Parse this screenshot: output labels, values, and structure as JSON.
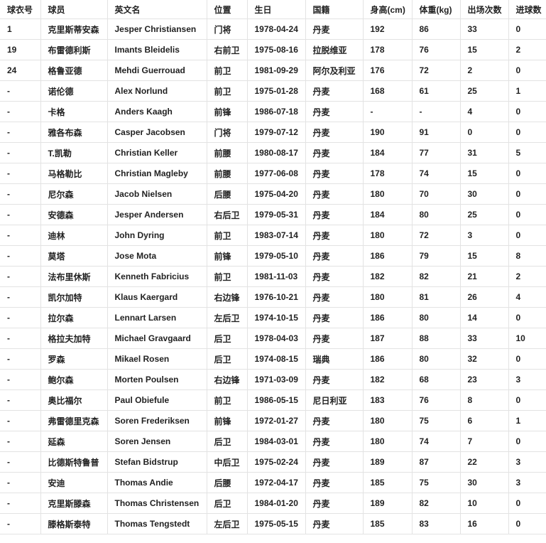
{
  "table": {
    "headers": [
      "球衣号",
      "球员",
      "英文名",
      "位置",
      "生日",
      "国籍",
      "身高(cm)",
      "体重(kg)",
      "出场次数",
      "进球数"
    ],
    "rows": [
      [
        "1",
        "克里斯蒂安森",
        "Jesper Christiansen",
        "门将",
        "1978-04-24",
        "丹麦",
        "192",
        "86",
        "33",
        "0"
      ],
      [
        "19",
        "布雷德利斯",
        "Imants Bleidelis",
        "右前卫",
        "1975-08-16",
        "拉脱维亚",
        "178",
        "76",
        "15",
        "2"
      ],
      [
        "24",
        "格鲁亚德",
        "Mehdi Guerrouad",
        "前卫",
        "1981-09-29",
        "阿尔及利亚",
        "176",
        "72",
        "2",
        "0"
      ],
      [
        "-",
        "诺伦德",
        "Alex Norlund",
        "前卫",
        "1975-01-28",
        "丹麦",
        "168",
        "61",
        "25",
        "1"
      ],
      [
        "-",
        "卡格",
        "Anders Kaagh",
        "前锋",
        "1986-07-18",
        "丹麦",
        "-",
        "-",
        "4",
        "0"
      ],
      [
        "-",
        "雅各布森",
        "Casper Jacobsen",
        "门将",
        "1979-07-12",
        "丹麦",
        "190",
        "91",
        "0",
        "0"
      ],
      [
        "-",
        "T.凯勒",
        "Christian Keller",
        "前腰",
        "1980-08-17",
        "丹麦",
        "184",
        "77",
        "31",
        "5"
      ],
      [
        "-",
        "马格勒比",
        "Christian Magleby",
        "前腰",
        "1977-06-08",
        "丹麦",
        "178",
        "74",
        "15",
        "0"
      ],
      [
        "-",
        "尼尔森",
        "Jacob Nielsen",
        "后腰",
        "1975-04-20",
        "丹麦",
        "180",
        "70",
        "30",
        "0"
      ],
      [
        "-",
        "安德森",
        "Jesper Andersen",
        "右后卫",
        "1979-05-31",
        "丹麦",
        "184",
        "80",
        "25",
        "0"
      ],
      [
        "-",
        "迪林",
        "John Dyring",
        "前卫",
        "1983-07-14",
        "丹麦",
        "180",
        "72",
        "3",
        "0"
      ],
      [
        "-",
        "莫塔",
        "Jose Mota",
        "前锋",
        "1979-05-10",
        "丹麦",
        "186",
        "79",
        "15",
        "8"
      ],
      [
        "-",
        "法布里休斯",
        "Kenneth Fabricius",
        "前卫",
        "1981-11-03",
        "丹麦",
        "182",
        "82",
        "21",
        "2"
      ],
      [
        "-",
        "凯尔加特",
        "Klaus Kaergard",
        "右边锋",
        "1976-10-21",
        "丹麦",
        "180",
        "81",
        "26",
        "4"
      ],
      [
        "-",
        "拉尔森",
        "Lennart Larsen",
        "左后卫",
        "1974-10-15",
        "丹麦",
        "186",
        "80",
        "14",
        "0"
      ],
      [
        "-",
        "格拉夫加特",
        "Michael Gravgaard",
        "后卫",
        "1978-04-03",
        "丹麦",
        "187",
        "88",
        "33",
        "10"
      ],
      [
        "-",
        "罗森",
        "Mikael Rosen",
        "后卫",
        "1974-08-15",
        "瑞典",
        "186",
        "80",
        "32",
        "0"
      ],
      [
        "-",
        "鲍尔森",
        "Morten Poulsen",
        "右边锋",
        "1971-03-09",
        "丹麦",
        "182",
        "68",
        "23",
        "3"
      ],
      [
        "-",
        "奥比福尔",
        "Paul Obiefule",
        "前卫",
        "1986-05-15",
        "尼日利亚",
        "183",
        "76",
        "8",
        "0"
      ],
      [
        "-",
        "弗雷德里克森",
        "Soren Frederiksen",
        "前锋",
        "1972-01-27",
        "丹麦",
        "180",
        "75",
        "6",
        "1"
      ],
      [
        "-",
        "延森",
        "Soren Jensen",
        "后卫",
        "1984-03-01",
        "丹麦",
        "180",
        "74",
        "7",
        "0"
      ],
      [
        "-",
        "比德斯特鲁普",
        "Stefan Bidstrup",
        "中后卫",
        "1975-02-24",
        "丹麦",
        "189",
        "87",
        "22",
        "3"
      ],
      [
        "-",
        "安迪",
        "Thomas Andie",
        "后腰",
        "1972-04-17",
        "丹麦",
        "185",
        "75",
        "30",
        "3"
      ],
      [
        "-",
        "克里斯滕森",
        "Thomas Christensen",
        "后卫",
        "1984-01-20",
        "丹麦",
        "189",
        "82",
        "10",
        "0"
      ],
      [
        "-",
        "滕格斯泰特",
        "Thomas Tengstedt",
        "左后卫",
        "1975-05-15",
        "丹麦",
        "185",
        "83",
        "16",
        "0"
      ]
    ]
  }
}
